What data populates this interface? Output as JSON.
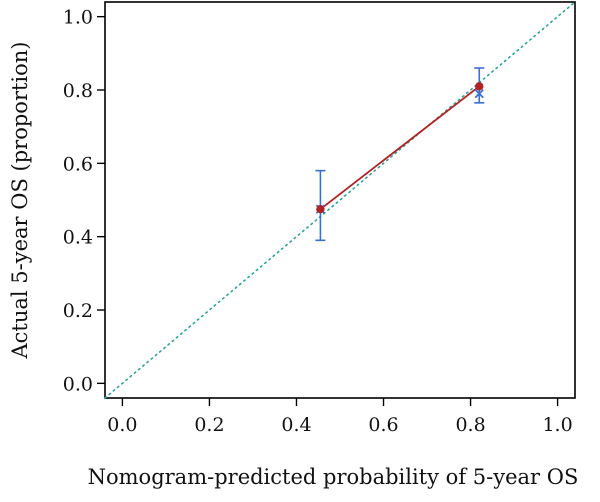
{
  "chart_data": {
    "type": "scatter",
    "title": "",
    "xlabel": "Nomogram-predicted probability of 5-year OS",
    "ylabel": "Actual 5-year OS (proportion)",
    "xlim": [
      -0.04,
      1.04
    ],
    "ylim": [
      -0.04,
      1.04
    ],
    "x_ticks": [
      "0.0",
      "0.2",
      "0.4",
      "0.6",
      "0.8",
      "1.0"
    ],
    "y_ticks": [
      "0.0",
      "0.2",
      "0.4",
      "0.6",
      "0.8",
      "1.0"
    ],
    "grid": false,
    "reference_line": {
      "type": "diagonal",
      "from": [
        -0.04,
        -0.04
      ],
      "to": [
        1.04,
        1.04
      ],
      "color": "#2aa39a",
      "style": "dotted"
    },
    "series": [
      {
        "points": [
          {
            "x": 0.455,
            "y": 0.475,
            "lower": 0.39,
            "upper": 0.58
          },
          {
            "x": 0.82,
            "y": 0.81,
            "lower": 0.765,
            "upper": 0.86
          }
        ],
        "line_color": "#b22222",
        "marker_color": "#b22222",
        "errorbar_color": "#3a6fd8"
      }
    ],
    "corrected_points": [
      {
        "x": 0.455,
        "y": 0.475
      },
      {
        "x": 0.82,
        "y": 0.79
      }
    ],
    "corrected_color": "#3a6fd8"
  }
}
